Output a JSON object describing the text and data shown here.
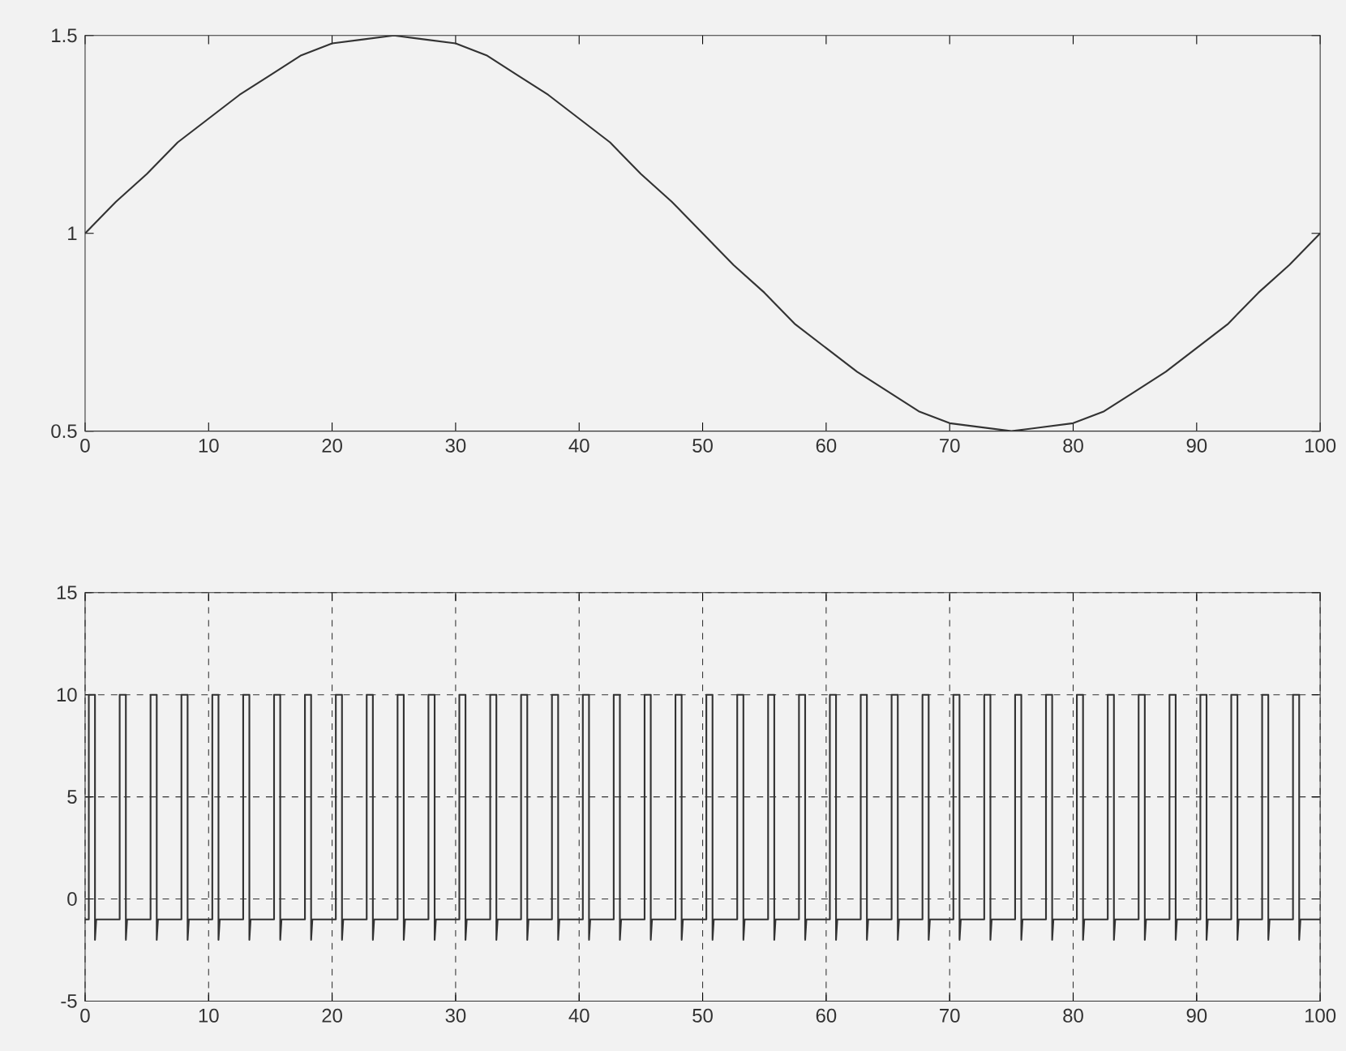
{
  "chart_data": [
    {
      "type": "line",
      "color": "#333333",
      "xlim": [
        0,
        100
      ],
      "ylim": [
        0.5,
        1.5
      ],
      "xticks": [
        0,
        10,
        20,
        30,
        40,
        50,
        60,
        70,
        80,
        90,
        100
      ],
      "yticks": [
        0.5,
        1,
        1.5
      ],
      "grid": false,
      "x": [
        0,
        2.5,
        5,
        7.5,
        10,
        12.5,
        15,
        17.5,
        20,
        22.5,
        25,
        27.5,
        30,
        32.5,
        35,
        37.5,
        40,
        42.5,
        45,
        47.5,
        50,
        52.5,
        55,
        57.5,
        60,
        62.5,
        65,
        67.5,
        70,
        72.5,
        75,
        77.5,
        80,
        82.5,
        85,
        87.5,
        90,
        92.5,
        95,
        97.5,
        100
      ],
      "values": [
        1,
        1.08,
        1.15,
        1.23,
        1.29,
        1.35,
        1.4,
        1.45,
        1.48,
        1.49,
        1.5,
        1.49,
        1.48,
        1.45,
        1.4,
        1.35,
        1.29,
        1.23,
        1.15,
        1.08,
        1,
        0.92,
        0.85,
        0.77,
        0.71,
        0.65,
        0.6,
        0.55,
        0.52,
        0.51,
        0.5,
        0.51,
        0.52,
        0.55,
        0.6,
        0.65,
        0.71,
        0.77,
        0.85,
        0.92,
        1
      ]
    },
    {
      "type": "line",
      "color": "#333333",
      "xlim": [
        0,
        100
      ],
      "ylim": [
        -5,
        15
      ],
      "xticks": [
        0,
        10,
        20,
        30,
        40,
        50,
        60,
        70,
        80,
        90,
        100
      ],
      "yticks": [
        -5,
        0,
        5,
        10,
        15
      ],
      "grid": true,
      "x": [
        0,
        0.3,
        0.3,
        0.8,
        0.8,
        0.9,
        2.8,
        2.8,
        3.3,
        3.3,
        3.4,
        5.3,
        5.3,
        5.8,
        5.8,
        5.9,
        7.8,
        7.8,
        8.3,
        8.3,
        8.4,
        10.3,
        10.3,
        10.8,
        10.8,
        10.9,
        12.8,
        12.8,
        13.3,
        13.3,
        13.4,
        15.3,
        15.3,
        15.8,
        15.8,
        15.9,
        17.8,
        17.8,
        18.3,
        18.3,
        18.4,
        20.3,
        20.3,
        20.8,
        20.8,
        20.9,
        22.8,
        22.8,
        23.3,
        23.3,
        23.4,
        25.3,
        25.3,
        25.8,
        25.8,
        25.9,
        27.8,
        27.8,
        28.3,
        28.3,
        28.4,
        30.3,
        30.3,
        30.8,
        30.8,
        30.9,
        32.8,
        32.8,
        33.3,
        33.3,
        33.4,
        35.3,
        35.3,
        35.8,
        35.8,
        35.9,
        37.8,
        37.8,
        38.3,
        38.3,
        38.4,
        40.3,
        40.3,
        40.8,
        40.8,
        40.9,
        42.8,
        42.8,
        43.3,
        43.3,
        43.4,
        45.3,
        45.3,
        45.8,
        45.8,
        45.9,
        47.8,
        47.8,
        48.3,
        48.3,
        48.4,
        50.3,
        50.3,
        50.8,
        50.8,
        50.9,
        52.8,
        52.8,
        53.3,
        53.3,
        53.4,
        55.3,
        55.3,
        55.8,
        55.8,
        55.9,
        57.8,
        57.8,
        58.3,
        58.3,
        58.4,
        60.3,
        60.3,
        60.8,
        60.8,
        60.9,
        62.8,
        62.8,
        63.3,
        63.3,
        63.4,
        65.3,
        65.3,
        65.8,
        65.8,
        65.9,
        67.8,
        67.8,
        68.3,
        68.3,
        68.4,
        70.3,
        70.3,
        70.8,
        70.8,
        70.9,
        72.8,
        72.8,
        73.3,
        73.3,
        73.4,
        75.3,
        75.3,
        75.8,
        75.8,
        75.9,
        77.8,
        77.8,
        78.3,
        78.3,
        78.4,
        80.3,
        80.3,
        80.8,
        80.8,
        80.9,
        82.8,
        82.8,
        83.3,
        83.3,
        83.4,
        85.3,
        85.3,
        85.8,
        85.8,
        85.9,
        87.8,
        87.8,
        88.3,
        88.3,
        88.4,
        90.3,
        90.3,
        90.8,
        90.8,
        90.9,
        92.8,
        92.8,
        93.3,
        93.3,
        93.4,
        95.3,
        95.3,
        95.8,
        95.8,
        95.9,
        97.8,
        97.8,
        98.3,
        98.3,
        98.4,
        100
      ],
      "values": [
        -1,
        -1,
        10,
        10,
        -2,
        -1,
        -1,
        10,
        10,
        -2,
        -1,
        -1,
        10,
        10,
        -2,
        -1,
        -1,
        10,
        10,
        -2,
        -1,
        -1,
        10,
        10,
        -2,
        -1,
        -1,
        10,
        10,
        -2,
        -1,
        -1,
        10,
        10,
        -2,
        -1,
        -1,
        10,
        10,
        -2,
        -1,
        -1,
        10,
        10,
        -2,
        -1,
        -1,
        10,
        10,
        -2,
        -1,
        -1,
        10,
        10,
        -2,
        -1,
        -1,
        10,
        10,
        -2,
        -1,
        -1,
        10,
        10,
        -2,
        -1,
        -1,
        10,
        10,
        -2,
        -1,
        -1,
        10,
        10,
        -2,
        -1,
        -1,
        10,
        10,
        -2,
        -1,
        -1,
        10,
        10,
        -2,
        -1,
        -1,
        10,
        10,
        -2,
        -1,
        -1,
        10,
        10,
        -2,
        -1,
        -1,
        10,
        10,
        -2,
        -1,
        -1,
        10,
        10,
        -2,
        -1,
        -1,
        10,
        10,
        -2,
        -1,
        -1,
        10,
        10,
        -2,
        -1,
        -1,
        10,
        10,
        -2,
        -1,
        -1,
        10,
        10,
        -2,
        -1,
        -1,
        10,
        10,
        -2,
        -1,
        -1,
        10,
        10,
        -2,
        -1,
        -1,
        10,
        10,
        -2,
        -1,
        -1,
        10,
        10,
        -2,
        -1,
        -1,
        10,
        10,
        -2,
        -1,
        -1,
        10,
        10,
        -2,
        -1,
        -1,
        10,
        10,
        -2,
        -1,
        -1,
        10,
        10,
        -2,
        -1,
        -1,
        10,
        10,
        -2,
        -1,
        -1,
        10,
        10,
        -2,
        -1,
        -1,
        10,
        10,
        -2,
        -1,
        -1,
        10,
        10,
        -2,
        -1,
        -1,
        10,
        10,
        -2,
        -1,
        -1,
        10,
        10,
        -2,
        -1,
        -1,
        10,
        10,
        -2,
        -1,
        -1
      ]
    }
  ]
}
